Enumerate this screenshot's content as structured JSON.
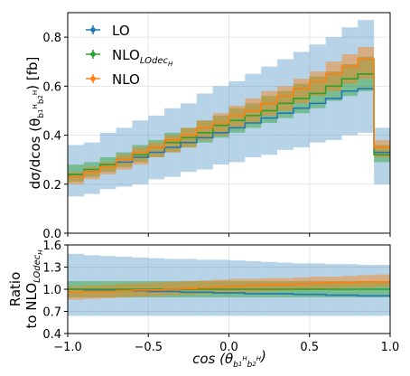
{
  "chart_data": [
    {
      "type": "line",
      "panel": "main",
      "drawstyle": "steps",
      "ylabel": "dσ/dcos (θ_{b1H b2H}) [fb]",
      "ylim": [
        0,
        0.9
      ],
      "xlim": [
        -1.0,
        1.0
      ],
      "yticks": [
        "0.0",
        "0.2",
        "0.4",
        "0.6",
        "0.8"
      ],
      "grid": true,
      "legend": {
        "position": "top-left",
        "entries": [
          {
            "name": "LO",
            "color": "#1f77b4"
          },
          {
            "name": "NLO_{LOdec_H}",
            "color": "#2ca02c"
          },
          {
            "name": "NLO",
            "color": "#ff7f0e"
          }
        ]
      },
      "bin_edges": [
        -1.0,
        -0.9,
        -0.8,
        -0.7,
        -0.6,
        -0.5,
        -0.4,
        -0.3,
        -0.2,
        -0.1,
        0.0,
        0.1,
        0.2,
        0.3,
        0.4,
        0.5,
        0.6,
        0.7,
        0.8,
        0.9,
        1.0
      ],
      "series": [
        {
          "name": "LO",
          "color": "#1f77b4",
          "values": [
            0.24,
            0.25,
            0.27,
            0.29,
            0.31,
            0.33,
            0.35,
            0.37,
            0.39,
            0.41,
            0.43,
            0.45,
            0.47,
            0.49,
            0.51,
            0.53,
            0.55,
            0.58,
            0.59,
            0.33
          ],
          "band_low": [
            0.15,
            0.16,
            0.18,
            0.19,
            0.2,
            0.22,
            0.23,
            0.25,
            0.26,
            0.28,
            0.29,
            0.31,
            0.32,
            0.34,
            0.35,
            0.37,
            0.38,
            0.4,
            0.41,
            0.2
          ],
          "band_high": [
            0.36,
            0.37,
            0.41,
            0.43,
            0.46,
            0.48,
            0.51,
            0.53,
            0.57,
            0.6,
            0.62,
            0.65,
            0.68,
            0.71,
            0.74,
            0.77,
            0.8,
            0.84,
            0.87,
            0.43
          ]
        },
        {
          "name": "NLO_{LOdec_H}",
          "color": "#2ca02c",
          "values": [
            0.24,
            0.26,
            0.28,
            0.3,
            0.32,
            0.35,
            0.37,
            0.39,
            0.41,
            0.44,
            0.46,
            0.48,
            0.5,
            0.53,
            0.55,
            0.57,
            0.6,
            0.63,
            0.65,
            0.32
          ],
          "band_low": [
            0.21,
            0.23,
            0.25,
            0.27,
            0.29,
            0.31,
            0.33,
            0.35,
            0.37,
            0.39,
            0.41,
            0.43,
            0.45,
            0.47,
            0.49,
            0.51,
            0.54,
            0.56,
            0.58,
            0.29
          ],
          "band_high": [
            0.28,
            0.29,
            0.31,
            0.33,
            0.36,
            0.38,
            0.41,
            0.43,
            0.46,
            0.48,
            0.51,
            0.53,
            0.56,
            0.58,
            0.61,
            0.64,
            0.66,
            0.69,
            0.72,
            0.36
          ]
        },
        {
          "name": "NLO",
          "color": "#ff7f0e",
          "values": [
            0.23,
            0.25,
            0.27,
            0.3,
            0.33,
            0.35,
            0.38,
            0.4,
            0.43,
            0.45,
            0.48,
            0.5,
            0.53,
            0.56,
            0.59,
            0.62,
            0.65,
            0.68,
            0.71,
            0.35
          ],
          "band_low": [
            0.2,
            0.22,
            0.24,
            0.26,
            0.28,
            0.31,
            0.33,
            0.35,
            0.38,
            0.4,
            0.43,
            0.45,
            0.48,
            0.5,
            0.53,
            0.56,
            0.58,
            0.61,
            0.63,
            0.31
          ],
          "band_high": [
            0.25,
            0.27,
            0.29,
            0.32,
            0.35,
            0.37,
            0.4,
            0.43,
            0.46,
            0.49,
            0.52,
            0.55,
            0.58,
            0.6,
            0.63,
            0.66,
            0.7,
            0.73,
            0.76,
            0.38
          ]
        }
      ]
    },
    {
      "type": "line",
      "panel": "ratio",
      "drawstyle": "steps",
      "xlabel": "cos (θ_{b1H b2H})",
      "ylabel": "Ratio to NLO_{LOdec_H}",
      "ylim": [
        0.4,
        1.6
      ],
      "yticks": [
        "0.4",
        "0.7",
        "1.0",
        "1.3",
        "1.6"
      ],
      "xticks": [
        "−1.0",
        "−0.5",
        "0.0",
        "0.5",
        "1.0"
      ],
      "xlim": [
        -1.0,
        1.0
      ],
      "grid": true,
      "series": [
        {
          "name": "LO",
          "color": "#1f77b4",
          "values": [
            1.0,
            0.99,
            0.99,
            0.98,
            0.98,
            0.97,
            0.97,
            0.96,
            0.96,
            0.95,
            0.95,
            0.94,
            0.94,
            0.94,
            0.93,
            0.93,
            0.92,
            0.92,
            0.91,
            0.91
          ],
          "band_low": [
            0.64,
            0.64,
            0.64,
            0.64,
            0.64,
            0.64,
            0.64,
            0.64,
            0.64,
            0.64,
            0.64,
            0.64,
            0.64,
            0.64,
            0.64,
            0.64,
            0.64,
            0.64,
            0.64,
            0.64
          ],
          "band_high": [
            1.48,
            1.46,
            1.45,
            1.44,
            1.43,
            1.42,
            1.41,
            1.41,
            1.4,
            1.4,
            1.39,
            1.38,
            1.37,
            1.36,
            1.35,
            1.35,
            1.34,
            1.34,
            1.33,
            1.33
          ]
        },
        {
          "name": "NLO_{LOdec_H}",
          "color": "#2ca02c",
          "values": [
            1.0,
            1.0,
            1.0,
            1.0,
            1.0,
            1.0,
            1.0,
            1.0,
            1.0,
            1.0,
            1.0,
            1.0,
            1.0,
            1.0,
            1.0,
            1.0,
            1.0,
            1.0,
            1.0,
            1.0
          ],
          "band_low": [
            0.89,
            0.89,
            0.89,
            0.89,
            0.89,
            0.89,
            0.89,
            0.89,
            0.89,
            0.89,
            0.89,
            0.89,
            0.89,
            0.89,
            0.89,
            0.89,
            0.89,
            0.89,
            0.89,
            0.89
          ],
          "band_high": [
            1.11,
            1.11,
            1.11,
            1.11,
            1.11,
            1.11,
            1.11,
            1.11,
            1.11,
            1.11,
            1.11,
            1.11,
            1.11,
            1.11,
            1.11,
            1.11,
            1.11,
            1.11,
            1.11,
            1.11
          ]
        },
        {
          "name": "NLO",
          "color": "#ff7f0e",
          "values": [
            0.96,
            0.97,
            0.97,
            0.98,
            0.99,
            0.99,
            1.0,
            1.01,
            1.02,
            1.03,
            1.04,
            1.05,
            1.06,
            1.06,
            1.07,
            1.08,
            1.09,
            1.09,
            1.1,
            1.1
          ],
          "band_low": [
            0.86,
            0.87,
            0.88,
            0.89,
            0.9,
            0.91,
            0.92,
            0.93,
            0.94,
            0.95,
            0.96,
            0.96,
            0.97,
            0.98,
            0.99,
            1.0,
            1.01,
            1.02,
            1.02,
            1.03
          ],
          "band_high": [
            1.04,
            1.05,
            1.06,
            1.07,
            1.08,
            1.09,
            1.1,
            1.11,
            1.12,
            1.13,
            1.14,
            1.14,
            1.15,
            1.15,
            1.16,
            1.17,
            1.17,
            1.18,
            1.19,
            1.2
          ]
        }
      ]
    }
  ]
}
